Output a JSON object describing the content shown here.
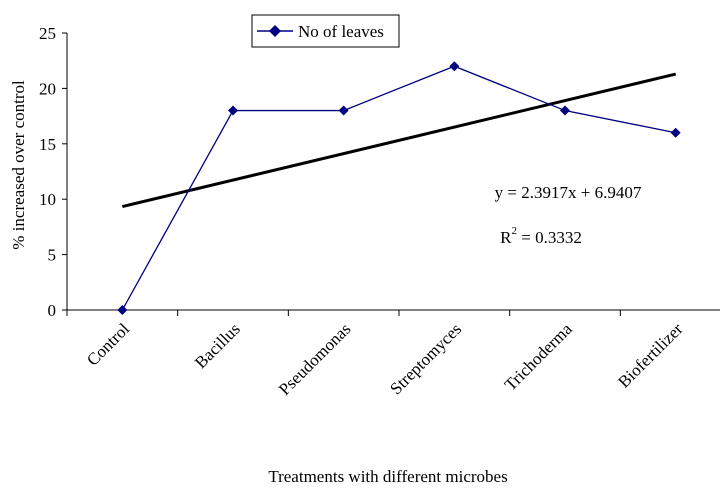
{
  "chart_data": {
    "type": "line",
    "title": "",
    "xlabel": "Treatments with different microbes",
    "ylabel": "% increased over control",
    "ylim": [
      0,
      25
    ],
    "yticks": [
      0,
      5,
      10,
      15,
      20,
      25
    ],
    "categories": [
      "Control",
      "Bacillus",
      "Pseudomonas",
      "Streptomyces",
      "Trichoderma",
      "Biofertilizer"
    ],
    "series": [
      {
        "name": "No of leaves",
        "values": [
          0,
          18,
          18,
          22,
          18,
          16
        ],
        "color": "#000080",
        "marker": "diamond"
      }
    ],
    "trendline": {
      "type": "linear",
      "slope": 2.3917,
      "intercept": 6.9407,
      "color": "#000000",
      "equation": "y = 2.3917x + 6.9407",
      "r2_prefix": "R",
      "r2_sup": "2",
      "r2_value": " = 0.3332"
    },
    "legend": {
      "position": "top",
      "label": "No of leaves"
    },
    "grid": false
  }
}
